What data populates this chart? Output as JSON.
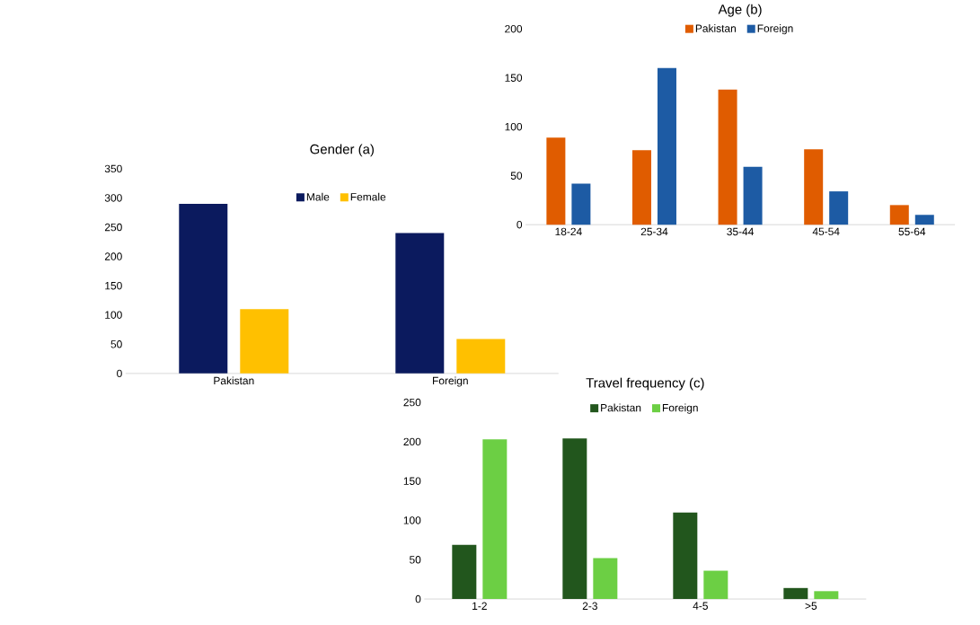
{
  "chart_data": [
    {
      "type": "bar",
      "title": "Gender (a)",
      "categories": [
        "Pakistan",
        "Foreign"
      ],
      "legend": "top",
      "ylim": [
        0,
        350
      ],
      "yticks": [
        0,
        50,
        100,
        150,
        200,
        250,
        300,
        350
      ],
      "series": [
        {
          "name": "Male",
          "color": "#0b1a5e",
          "values": [
            290,
            240
          ]
        },
        {
          "name": "Female",
          "color": "#ffc000",
          "values": [
            110,
            59
          ]
        }
      ]
    },
    {
      "type": "bar",
      "title": "Age (b)",
      "categories": [
        "18-24",
        "25-34",
        "35-44",
        "45-54",
        "55-64"
      ],
      "legend": "top",
      "ylim": [
        0,
        200
      ],
      "yticks": [
        0,
        50,
        100,
        150,
        200
      ],
      "series": [
        {
          "name": "Pakistan",
          "color": "#e05c00",
          "values": [
            89,
            76,
            138,
            77,
            20
          ]
        },
        {
          "name": "Foreign",
          "color": "#1d5ba4",
          "values": [
            42,
            160,
            59,
            34,
            10
          ]
        }
      ]
    },
    {
      "type": "bar",
      "title": "Travel frequency (c)",
      "categories": [
        "1-2",
        "2-3",
        "4-5",
        ">5"
      ],
      "legend": "top",
      "ylim": [
        0,
        250
      ],
      "yticks": [
        0,
        50,
        100,
        150,
        200,
        250
      ],
      "series": [
        {
          "name": "Pakistan",
          "color": "#22561d",
          "values": [
            69,
            204,
            110,
            14
          ]
        },
        {
          "name": "Foreign",
          "color": "#6ccf44",
          "values": [
            203,
            52,
            36,
            10
          ]
        }
      ]
    }
  ]
}
